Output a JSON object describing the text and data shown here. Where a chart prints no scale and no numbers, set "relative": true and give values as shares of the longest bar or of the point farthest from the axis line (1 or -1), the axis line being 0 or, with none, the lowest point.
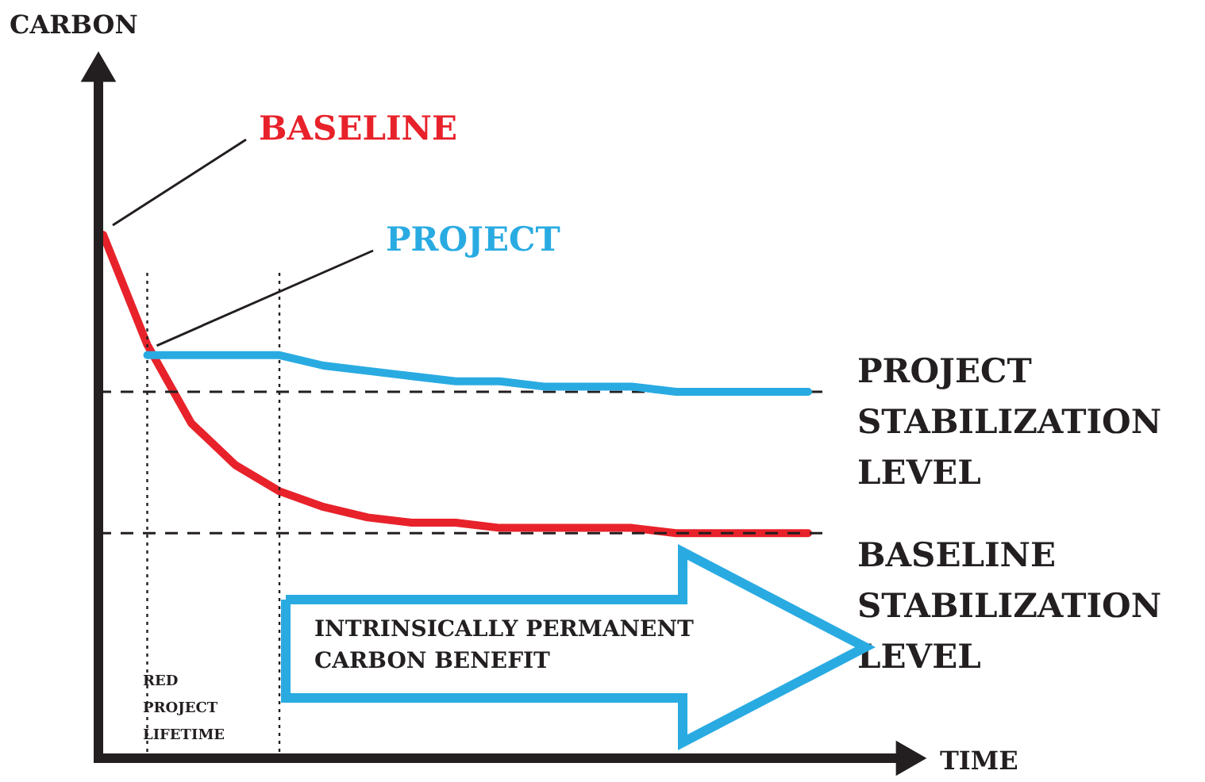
{
  "chart_data": {
    "type": "line",
    "relative": true,
    "xlabel": "TIME",
    "marker": "none",
    "line_style": "solid",
    "categories": [
      null,
      null,
      null,
      null,
      null,
      null,
      null,
      null,
      null,
      null,
      null,
      null,
      null,
      null,
      null,
      null,
      null
    ],
    "series": [
      {
        "name": "BASELINE",
        "color": "#e8222a",
        "values": [
          1.0,
          0.79,
          0.64,
          0.56,
          0.51,
          0.48,
          0.46,
          0.45,
          0.45,
          0.44,
          0.44,
          0.44,
          0.44,
          0.43,
          0.43,
          0.43,
          0.43
        ]
      },
      {
        "name": "PROJECT",
        "color": "#29abe2",
        "values": [
          null,
          0.77,
          0.77,
          0.77,
          0.77,
          0.75,
          0.74,
          0.73,
          0.72,
          0.72,
          0.71,
          0.71,
          0.71,
          0.7,
          0.7,
          0.7,
          0.7
        ]
      }
    ],
    "ref_lines": [
      {
        "axis": "y",
        "value": 0.7,
        "label": "PROJECT STABILIZATION LEVEL",
        "line_style": "dashed",
        "color": "#231f20"
      },
      {
        "axis": "y",
        "value": 0.43,
        "label": "BASELINE STABILIZATION LEVEL",
        "line_style": "dashed",
        "color": "#231f20"
      }
    ],
    "annotations": [
      "CARBON",
      "INTRINSICALLY PERMANENT\nCARBON BENEFIT",
      "RED\nPROJECT\nLIFETIME"
    ]
  }
}
